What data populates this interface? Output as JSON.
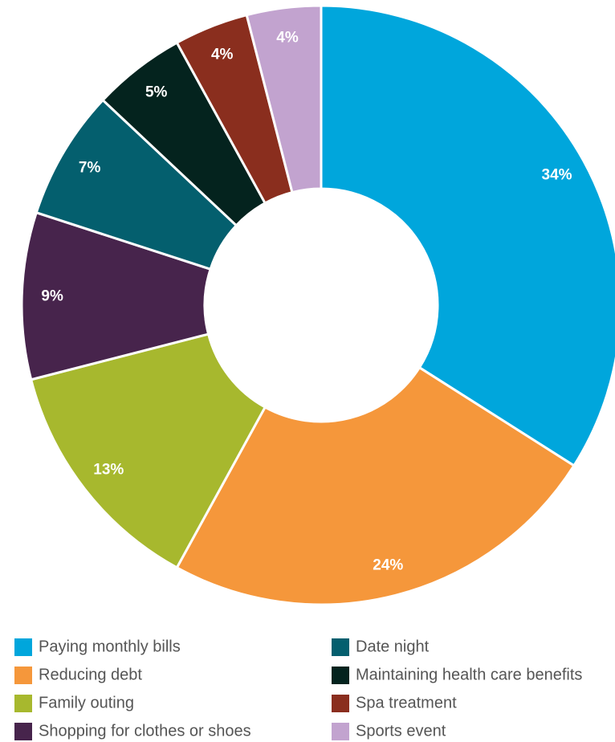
{
  "chart_data": {
    "type": "pie",
    "categories": [
      "Paying monthly bills",
      "Reducing debt",
      "Family outing",
      "Shopping for clothes or shoes",
      "Date night",
      "Maintaining health care benefits",
      "Spa treatment",
      "Sports event"
    ],
    "values": [
      34,
      24,
      13,
      9,
      7,
      5,
      4,
      4
    ],
    "value_labels": [
      "34%",
      "24%",
      "13%",
      "9%",
      "7%",
      "5%",
      "4%",
      "4%"
    ],
    "colors": [
      "#00a6dc",
      "#f5973b",
      "#a7b82e",
      "#47244c",
      "#045f6e",
      "#04231e",
      "#8a2e1e",
      "#c2a3cf"
    ],
    "donut": true,
    "legend": "bottom"
  }
}
